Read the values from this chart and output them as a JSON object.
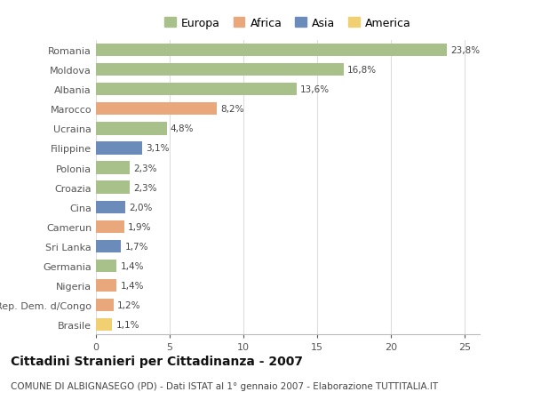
{
  "categories": [
    "Romania",
    "Moldova",
    "Albania",
    "Marocco",
    "Ucraina",
    "Filippine",
    "Polonia",
    "Croazia",
    "Cina",
    "Camerun",
    "Sri Lanka",
    "Germania",
    "Nigeria",
    "Rep. Dem. d/Congo",
    "Brasile"
  ],
  "values": [
    23.8,
    16.8,
    13.6,
    8.2,
    4.8,
    3.1,
    2.3,
    2.3,
    2.0,
    1.9,
    1.7,
    1.4,
    1.4,
    1.2,
    1.1
  ],
  "labels": [
    "23,8%",
    "16,8%",
    "13,6%",
    "8,2%",
    "4,8%",
    "3,1%",
    "2,3%",
    "2,3%",
    "2,0%",
    "1,9%",
    "1,7%",
    "1,4%",
    "1,4%",
    "1,2%",
    "1,1%"
  ],
  "continents": [
    "Europa",
    "Europa",
    "Europa",
    "Africa",
    "Europa",
    "Asia",
    "Europa",
    "Europa",
    "Asia",
    "Africa",
    "Asia",
    "Europa",
    "Africa",
    "Africa",
    "America"
  ],
  "continent_colors": {
    "Europa": "#a8c08a",
    "Africa": "#e8a87c",
    "Asia": "#6b8cba",
    "America": "#f0d070"
  },
  "legend_order": [
    "Europa",
    "Africa",
    "Asia",
    "America"
  ],
  "title": "Cittadini Stranieri per Cittadinanza - 2007",
  "subtitle": "COMUNE DI ALBIGNASEGO (PD) - Dati ISTAT al 1° gennaio 2007 - Elaborazione TUTTITALIA.IT",
  "xlim": [
    0,
    26
  ],
  "xticks": [
    0,
    5,
    10,
    15,
    20,
    25
  ],
  "background_color": "#ffffff",
  "grid_color": "#dddddd",
  "bar_height": 0.65,
  "label_fontsize": 7.5,
  "title_fontsize": 10,
  "subtitle_fontsize": 7.5,
  "tick_fontsize": 8,
  "legend_fontsize": 9
}
